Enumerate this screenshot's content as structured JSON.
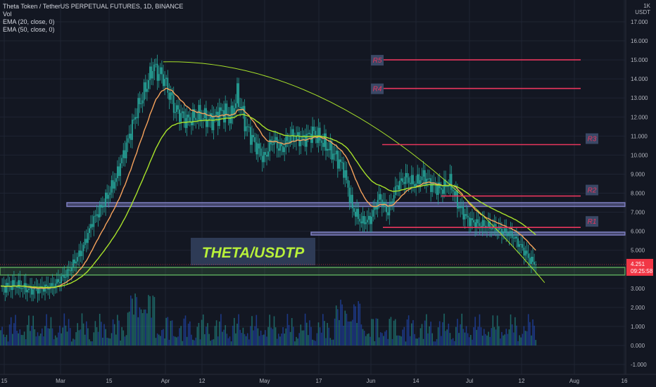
{
  "header": {
    "symbol_line": "Theta Token / TetherUS PERPETUAL FUTURES, 1D, BINANCE",
    "indicator_1": "Vol",
    "indicator_2": "EMA (20, close, 0)",
    "indicator_3": "EMA (50, close, 0)",
    "scale_top": "1K",
    "currency": "USDT"
  },
  "colors": {
    "background": "#131722",
    "candle_color": "#26a69a",
    "ema20": "#f7a35c",
    "ema50": "#a8e22a",
    "resistance": "#e8365d",
    "zone_purple": "#7e7fc2",
    "zone_green": "#5aa55a",
    "price_badge": "#f23645",
    "watermark_text": "#b8f03a",
    "watermark_bg": "#2e3b56"
  },
  "price_label": {
    "value": "4.251",
    "timer": "09:25:58"
  },
  "watermark": "THETA/USDTP",
  "chart_data": {
    "type": "candlestick",
    "symbol": "Theta Token / TetherUS PERPETUAL FUTURES",
    "interval": "1D",
    "exchange": "BINANCE",
    "x_ticks": [
      "15",
      "Mar",
      "15",
      "Apr",
      "12",
      "May",
      "17",
      "Jun",
      "14",
      "Jul",
      "12",
      "Aug",
      "16"
    ],
    "y_ticks": [
      "17.000",
      "16.000",
      "15.000",
      "14.000",
      "13.000",
      "12.000",
      "11.000",
      "10.000",
      "9.000",
      "8.000",
      "7.000",
      "6.000",
      "5.000",
      "3.000",
      "2.000",
      "1.000",
      "0.000",
      "-1.000"
    ],
    "ylim": [
      -1.4,
      17.8
    ],
    "price_anchors": [
      [
        0,
        3.0
      ],
      [
        10,
        3.2
      ],
      [
        20,
        2.9
      ],
      [
        35,
        3.1
      ],
      [
        45,
        3.8
      ],
      [
        55,
        5.0
      ],
      [
        62,
        6.5
      ],
      [
        70,
        7.5
      ],
      [
        78,
        8.8
      ],
      [
        85,
        10.5
      ],
      [
        92,
        12.3
      ],
      [
        98,
        13.5
      ],
      [
        103,
        14.6
      ],
      [
        110,
        14.1
      ],
      [
        118,
        12.4
      ],
      [
        126,
        11.8
      ],
      [
        134,
        12.1
      ],
      [
        142,
        11.8
      ],
      [
        150,
        12.3
      ],
      [
        156,
        12.0
      ],
      [
        160,
        13.2
      ],
      [
        166,
        11.5
      ],
      [
        172,
        10.6
      ],
      [
        178,
        9.8
      ],
      [
        184,
        10.8
      ],
      [
        190,
        10.3
      ],
      [
        196,
        11.0
      ],
      [
        204,
        10.8
      ],
      [
        212,
        11.2
      ],
      [
        220,
        10.5
      ],
      [
        226,
        10.0
      ],
      [
        232,
        9.3
      ],
      [
        238,
        7.2
      ],
      [
        244,
        6.5
      ],
      [
        250,
        6.6
      ],
      [
        256,
        7.8
      ],
      [
        262,
        7.0
      ],
      [
        268,
        8.4
      ],
      [
        274,
        8.8
      ],
      [
        280,
        8.5
      ],
      [
        286,
        8.9
      ],
      [
        292,
        8.4
      ],
      [
        298,
        8.2
      ],
      [
        304,
        8.6
      ],
      [
        310,
        7.3
      ],
      [
        316,
        6.6
      ],
      [
        322,
        6.4
      ],
      [
        328,
        6.3
      ],
      [
        334,
        6.2
      ],
      [
        340,
        6.0
      ],
      [
        346,
        5.8
      ],
      [
        352,
        5.2
      ],
      [
        358,
        4.5
      ],
      [
        362,
        4.251
      ]
    ],
    "resistance_levels": [
      {
        "label": "R1",
        "price": 6.2
      },
      {
        "label": "R2",
        "price": 7.85
      },
      {
        "label": "R3",
        "price": 10.55
      },
      {
        "label": "R4",
        "price": 13.5
      },
      {
        "label": "R5",
        "price": 15.0
      }
    ],
    "support_zones": [
      {
        "from": 7.3,
        "to": 7.5,
        "color": "purple"
      },
      {
        "from": 5.8,
        "to": 5.95,
        "color": "purple"
      },
      {
        "from": 3.7,
        "to": 4.1,
        "color": "green"
      }
    ],
    "last_price": 4.251
  }
}
